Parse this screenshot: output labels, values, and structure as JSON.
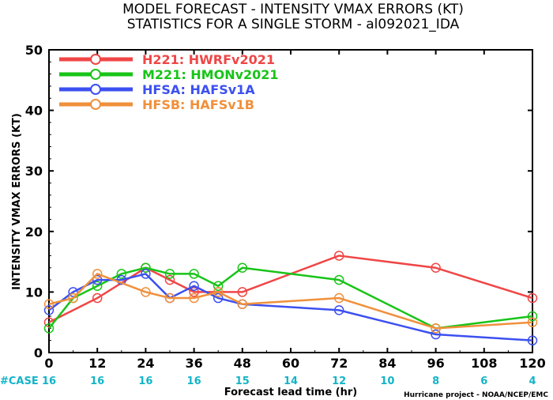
{
  "chart_data": {
    "type": "line",
    "title": "MODEL FORECAST - INTENSITY VMAX ERRORS (KT)",
    "subtitle": "STATISTICS FOR A SINGLE STORM - al092021_IDA",
    "xlabel": "Forecast lead time (hr)",
    "ylabel": "INTENSITY VMAX ERRORS (KT)",
    "xlim": [
      0,
      120
    ],
    "ylim": [
      0,
      50
    ],
    "x_ticks": [
      "0",
      "12",
      "24",
      "36",
      "48",
      "60",
      "72",
      "84",
      "96",
      "108",
      "120"
    ],
    "y_ticks": [
      "0",
      "10",
      "20",
      "30",
      "40",
      "50"
    ],
    "legend_position": "top-left",
    "series": [
      {
        "name": "H221: HWRFv2021",
        "color": "#f04646",
        "x": [
          0,
          12,
          24,
          30,
          36,
          42,
          48,
          72,
          96,
          120
        ],
        "values": [
          5,
          9,
          14,
          12,
          10,
          10,
          10,
          16,
          14,
          9
        ]
      },
      {
        "name": "M221: HMONv2021",
        "color": "#18c418",
        "x": [
          0,
          6,
          12,
          18,
          24,
          30,
          36,
          42,
          48,
          72,
          96,
          120
        ],
        "values": [
          4,
          9,
          11,
          13,
          14,
          13,
          13,
          11,
          14,
          12,
          4,
          6
        ]
      },
      {
        "name": "HFSA: HAFSv1A",
        "color": "#3c50f0",
        "x": [
          0,
          6,
          12,
          18,
          24,
          30,
          36,
          42,
          48,
          72,
          96,
          120
        ],
        "values": [
          7,
          10,
          12,
          12,
          13,
          9,
          11,
          9,
          8,
          7,
          3,
          2
        ]
      },
      {
        "name": "HFSB: HAFSv1B",
        "color": "#f0903c",
        "x": [
          0,
          6,
          12,
          24,
          30,
          36,
          42,
          48,
          72,
          96,
          120
        ],
        "values": [
          8,
          9,
          13,
          10,
          9,
          9,
          10,
          8,
          9,
          4,
          5
        ]
      }
    ],
    "cases": {
      "label": "#CASE",
      "color": "#14b4c8",
      "x": [
        0,
        12,
        24,
        36,
        48,
        60,
        72,
        84,
        96,
        108,
        120
      ],
      "values": [
        "16",
        "16",
        "16",
        "16",
        "15",
        "14",
        "12",
        "10",
        "8",
        "6",
        "4"
      ]
    },
    "credit": "Hurricane project - NOAA/NCEP/EMC"
  }
}
